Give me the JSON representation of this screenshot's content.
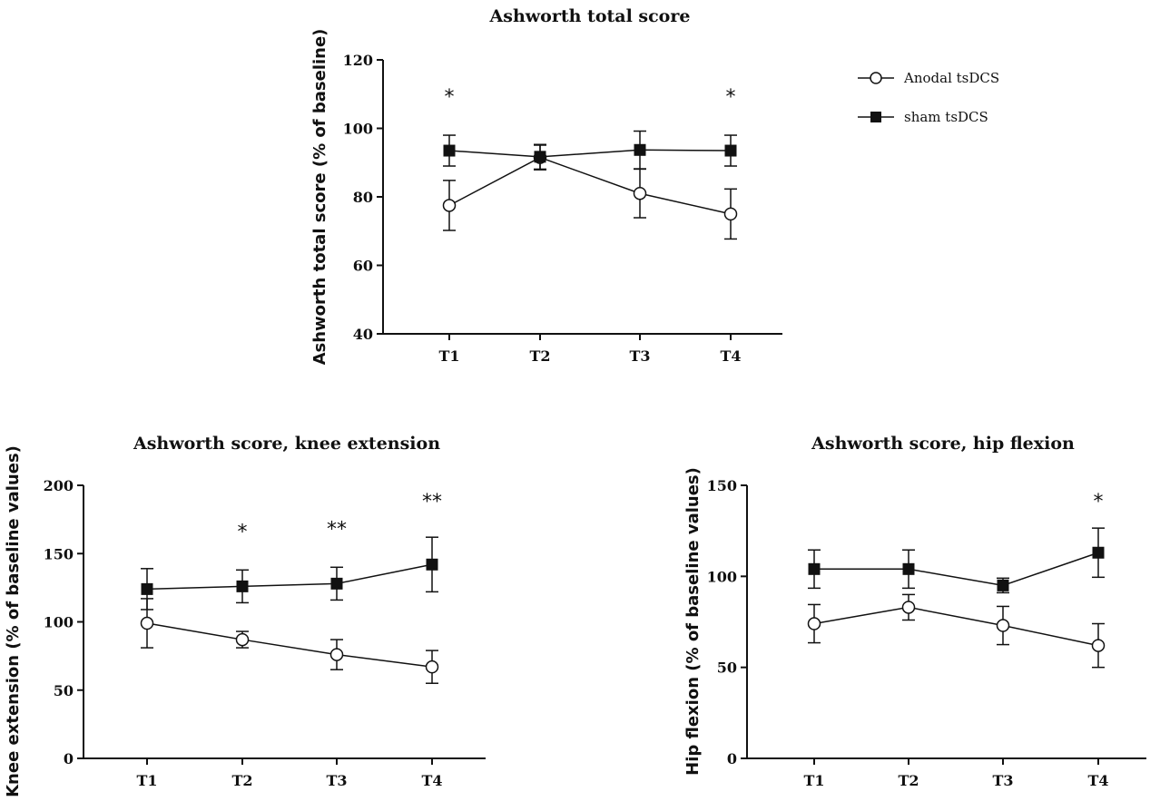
{
  "legend": [
    {
      "label": "Anodal tsDCS",
      "marker": "open-circle"
    },
    {
      "label": "sham tsDCS",
      "marker": "filled-square"
    }
  ],
  "chart_data": [
    {
      "type": "line",
      "title": "Ashworth total score",
      "xlabel": "",
      "ylabel": "Ashworth total score (% of baseline)",
      "categories": [
        "T1",
        "T2",
        "T3",
        "T4"
      ],
      "ylim": [
        40,
        120
      ],
      "yticks": [
        40,
        60,
        80,
        100,
        120
      ],
      "series": [
        {
          "name": "Anodal tsDCS",
          "marker": "open-circle",
          "values": [
            77.5,
            91.5,
            81,
            75
          ],
          "errors": [
            7.3,
            3.6,
            7.1,
            7.3
          ]
        },
        {
          "name": "sham tsDCS",
          "marker": "filled-square",
          "values": [
            93.5,
            91.7,
            93.7,
            93.5
          ],
          "errors": [
            4.5,
            3.6,
            5.5,
            4.5
          ]
        }
      ],
      "annotations": [
        {
          "category": "T1",
          "text": "*"
        },
        {
          "category": "T4",
          "text": "*"
        }
      ]
    },
    {
      "type": "line",
      "title": "Ashworth score, knee extension",
      "xlabel": "",
      "ylabel": "Knee extension (% of baseline values)",
      "categories": [
        "T1",
        "T2",
        "T3",
        "T4"
      ],
      "ylim": [
        0,
        200
      ],
      "yticks": [
        0,
        50,
        100,
        150,
        200
      ],
      "series": [
        {
          "name": "Anodal tsDCS",
          "marker": "open-circle",
          "values": [
            99,
            87,
            76,
            67
          ],
          "errors": [
            18,
            6,
            11,
            12
          ]
        },
        {
          "name": "sham tsDCS",
          "marker": "filled-square",
          "values": [
            124,
            126,
            128,
            142
          ],
          "errors": [
            15,
            12,
            12,
            20
          ]
        }
      ],
      "annotations": [
        {
          "category": "T2",
          "text": "*"
        },
        {
          "category": "T3",
          "text": "**"
        },
        {
          "category": "T4",
          "text": "**"
        }
      ]
    },
    {
      "type": "line",
      "title": "Ashworth score, hip flexion",
      "xlabel": "",
      "ylabel": "Hip flexion (% of baseline values)",
      "categories": [
        "T1",
        "T2",
        "T3",
        "T4"
      ],
      "ylim": [
        0,
        150
      ],
      "yticks": [
        0,
        50,
        100,
        150
      ],
      "series": [
        {
          "name": "Anodal tsDCS",
          "marker": "open-circle",
          "values": [
            74,
            83,
            73,
            62
          ],
          "errors": [
            10.5,
            7,
            10.5,
            12
          ]
        },
        {
          "name": "sham tsDCS",
          "marker": "filled-square",
          "values": [
            104,
            104,
            95,
            113
          ],
          "errors": [
            10.5,
            10.5,
            4,
            13.5
          ]
        }
      ],
      "annotations": [
        {
          "category": "T4",
          "text": "*"
        }
      ]
    }
  ]
}
